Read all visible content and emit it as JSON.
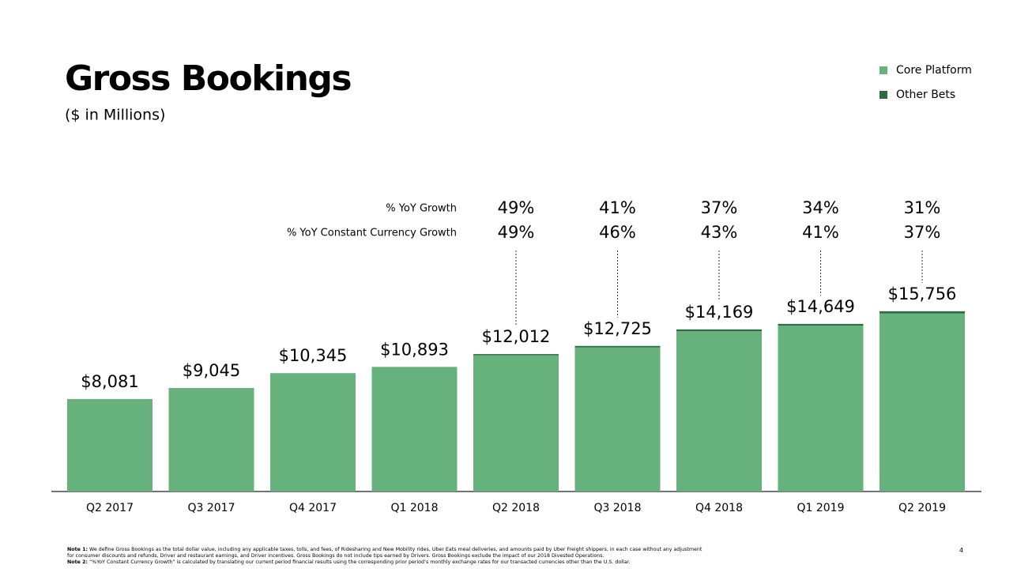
{
  "title": "Gross Bookings",
  "subtitle": "($ in Millions)",
  "page_number": "4",
  "notes": [
    {
      "label": "Note 1:",
      "text": "We define Gross Bookings as the total dollar value, including any applicable taxes, tolls, and fees, of Ridesharing and New Mobility rides, Uber Eats meal deliveries, and amounts paid by Uber Freight shippers, in each case without any adjustment for consumer discounts and refunds, Driver and restaurant earnings, and Driver incentives. Gross Bookings do not include tips earned by Drivers. Gross Bookings exclude the impact of our 2018 Divested Operations."
    },
    {
      "label": "Note 2:",
      "text": "“%YoY Constant Currency Growth” is calculated by translating our current period financial results using the corresponding prior period’s monthly exchange rates for our transacted currencies other than the U.S. dollar."
    }
  ],
  "chart_data": {
    "type": "stacked_bar",
    "categories": [
      "Q2 2017",
      "Q3 2017",
      "Q4 2017",
      "Q1 2018",
      "Q2 2018",
      "Q3 2018",
      "Q4 2018",
      "Q1 2019",
      "Q2 2019"
    ],
    "series": [
      {
        "name": "Core Platform",
        "color": "#66b17c",
        "values": [
          8081,
          9045,
          10345,
          10893,
          11912,
          12605,
          14019,
          14499,
          15556
        ]
      },
      {
        "name": "Other Bets",
        "color": "#2f6a41",
        "values": [
          0,
          0,
          0,
          0,
          100,
          120,
          150,
          150,
          200
        ]
      }
    ],
    "totals": {
      "values": [
        8081,
        9045,
        10345,
        10893,
        12012,
        12725,
        14169,
        14649,
        15756
      ],
      "value_labels": [
        "$8,081",
        "$9,045",
        "$10,345",
        "$10,893",
        "$12,012",
        "$12,725",
        "$14,169",
        "$14,649",
        "$15,756"
      ]
    },
    "growth_rows": [
      {
        "label": "% YoY Growth",
        "values": [
          null,
          null,
          null,
          null,
          49,
          41,
          37,
          34,
          31
        ],
        "value_labels": [
          null,
          null,
          null,
          null,
          "49%",
          "41%",
          "37%",
          "34%",
          "31%"
        ]
      },
      {
        "label": "% YoY Constant Currency Growth",
        "values": [
          null,
          null,
          null,
          null,
          49,
          46,
          43,
          41,
          37
        ],
        "value_labels": [
          null,
          null,
          null,
          null,
          "49%",
          "46%",
          "43%",
          "41%",
          "37%"
        ]
      }
    ],
    "ylim": [
      0,
      18000
    ],
    "legend": "top-right"
  }
}
